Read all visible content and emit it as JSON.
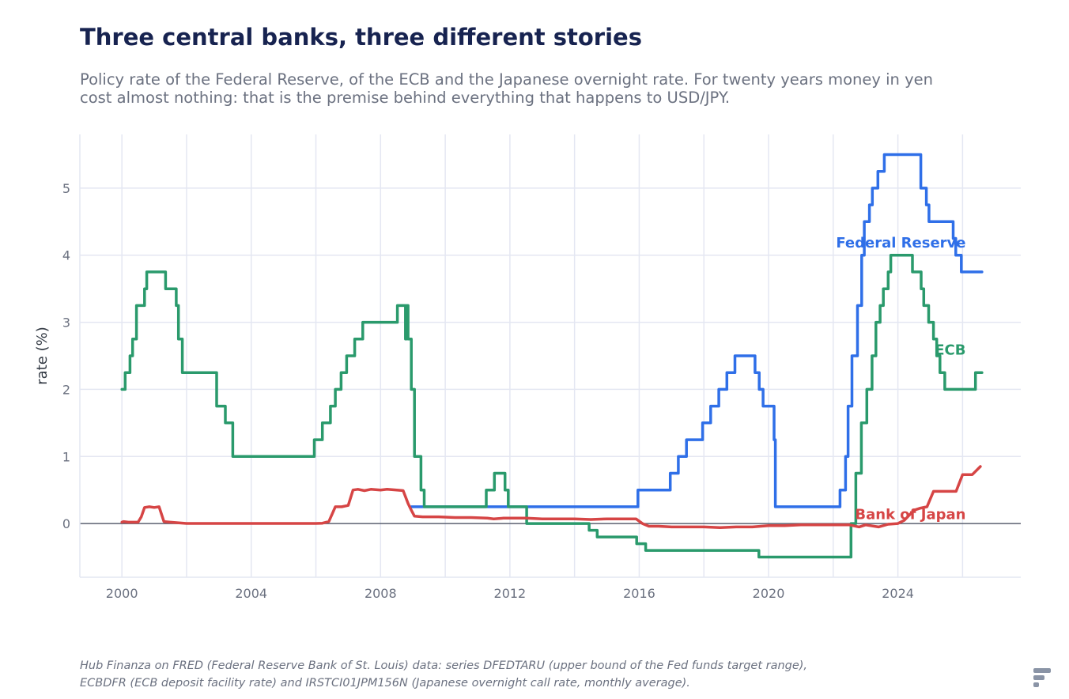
{
  "title": "Three central banks, three different stories",
  "subtitle": "Policy rate of the Federal Reserve, of the ECB and the Japanese overnight rate. For twenty years money in yen cost almost nothing: that is the premise behind everything that happens to USD/JPY.",
  "footnote": "Hub Finanza on FRED (Federal Reserve Bank of St. Louis) data: series DFEDTARU (upper bound of the Fed funds target range), ECBDFR (ECB deposit facility rate) and IRSTCI01JPM156N (Japanese overnight call rate, monthly average).",
  "logo_icon": "brand-logo-icon",
  "chart_data": {
    "type": "line",
    "title": "Three central banks, three different stories",
    "xlabel": "",
    "ylabel": "rate (%)",
    "xlim": [
      1998.7,
      2027.8
    ],
    "ylim": [
      -0.8,
      5.8
    ],
    "x_ticks": [
      2000,
      2004,
      2008,
      2012,
      2016,
      2020,
      2024
    ],
    "x_tick_labels": [
      "2000",
      "2004",
      "2008",
      "2012",
      "2016",
      "2020",
      "2024"
    ],
    "y_ticks": [
      0,
      1,
      2,
      3,
      4,
      5
    ],
    "y_tick_labels": [
      "0",
      "1",
      "2",
      "3",
      "4",
      "5"
    ],
    "grid": true,
    "legend": "direct labels",
    "series": [
      {
        "name": "Federal Reserve",
        "color": "#2f6fe8",
        "step": true,
        "points": [
          [
            2008.95,
            0.25
          ],
          [
            2015.96,
            0.5
          ],
          [
            2016.96,
            0.75
          ],
          [
            2017.21,
            1.0
          ],
          [
            2017.46,
            1.25
          ],
          [
            2017.96,
            1.5
          ],
          [
            2018.21,
            1.75
          ],
          [
            2018.46,
            2.0
          ],
          [
            2018.71,
            2.25
          ],
          [
            2018.96,
            2.5
          ],
          [
            2019.58,
            2.25
          ],
          [
            2019.71,
            2.0
          ],
          [
            2019.83,
            1.75
          ],
          [
            2020.17,
            1.25
          ],
          [
            2020.21,
            0.25
          ],
          [
            2022.21,
            0.5
          ],
          [
            2022.38,
            1.0
          ],
          [
            2022.46,
            1.75
          ],
          [
            2022.58,
            2.5
          ],
          [
            2022.75,
            3.25
          ],
          [
            2022.88,
            4.0
          ],
          [
            2022.96,
            4.5
          ],
          [
            2023.12,
            4.75
          ],
          [
            2023.21,
            5.0
          ],
          [
            2023.38,
            5.25
          ],
          [
            2023.58,
            5.5
          ],
          [
            2024.71,
            5.0
          ],
          [
            2024.88,
            4.75
          ],
          [
            2024.96,
            4.5
          ],
          [
            2025.71,
            4.25
          ],
          [
            2025.79,
            4.0
          ],
          [
            2025.96,
            3.75
          ],
          [
            2026.6,
            3.75
          ]
        ]
      },
      {
        "name": "ECB",
        "color": "#2a9a6c",
        "step": true,
        "points": [
          [
            2000.0,
            2.0
          ],
          [
            2000.1,
            2.25
          ],
          [
            2000.25,
            2.5
          ],
          [
            2000.33,
            2.75
          ],
          [
            2000.45,
            3.25
          ],
          [
            2000.7,
            3.5
          ],
          [
            2000.77,
            3.75
          ],
          [
            2001.35,
            3.5
          ],
          [
            2001.68,
            3.25
          ],
          [
            2001.75,
            2.75
          ],
          [
            2001.87,
            2.25
          ],
          [
            2002.93,
            1.75
          ],
          [
            2003.2,
            1.5
          ],
          [
            2003.43,
            1.0
          ],
          [
            2005.95,
            1.25
          ],
          [
            2006.2,
            1.5
          ],
          [
            2006.45,
            1.75
          ],
          [
            2006.6,
            2.0
          ],
          [
            2006.78,
            2.25
          ],
          [
            2006.95,
            2.5
          ],
          [
            2007.2,
            2.75
          ],
          [
            2007.45,
            3.0
          ],
          [
            2008.52,
            3.25
          ],
          [
            2008.77,
            2.75
          ],
          [
            2008.8,
            3.25
          ],
          [
            2008.85,
            2.75
          ],
          [
            2008.95,
            2.0
          ],
          [
            2009.05,
            1.0
          ],
          [
            2009.25,
            0.5
          ],
          [
            2009.35,
            0.25
          ],
          [
            2011.27,
            0.5
          ],
          [
            2011.52,
            0.75
          ],
          [
            2011.85,
            0.5
          ],
          [
            2011.95,
            0.25
          ],
          [
            2012.52,
            0.0
          ],
          [
            2014.45,
            -0.1
          ],
          [
            2014.7,
            -0.2
          ],
          [
            2015.92,
            -0.3
          ],
          [
            2016.2,
            -0.4
          ],
          [
            2019.7,
            -0.5
          ],
          [
            2022.55,
            0.0
          ],
          [
            2022.7,
            0.75
          ],
          [
            2022.87,
            1.5
          ],
          [
            2023.04,
            2.0
          ],
          [
            2023.2,
            2.5
          ],
          [
            2023.32,
            3.0
          ],
          [
            2023.45,
            3.25
          ],
          [
            2023.55,
            3.5
          ],
          [
            2023.7,
            3.75
          ],
          [
            2023.78,
            4.0
          ],
          [
            2024.45,
            3.75
          ],
          [
            2024.72,
            3.5
          ],
          [
            2024.8,
            3.25
          ],
          [
            2024.95,
            3.0
          ],
          [
            2025.1,
            2.75
          ],
          [
            2025.2,
            2.5
          ],
          [
            2025.3,
            2.25
          ],
          [
            2025.45,
            2.0
          ],
          [
            2026.4,
            2.25
          ],
          [
            2026.6,
            2.25
          ]
        ]
      },
      {
        "name": "Bank of Japan",
        "color": "#d64545",
        "step": false,
        "points": [
          [
            2000.0,
            0.02
          ],
          [
            2000.05,
            0.03
          ],
          [
            2000.2,
            0.02
          ],
          [
            2000.5,
            0.02
          ],
          [
            2000.6,
            0.1
          ],
          [
            2000.7,
            0.24
          ],
          [
            2000.85,
            0.25
          ],
          [
            2001.0,
            0.24
          ],
          [
            2001.15,
            0.25
          ],
          [
            2001.3,
            0.03
          ],
          [
            2001.5,
            0.02
          ],
          [
            2002.0,
            0.002
          ],
          [
            2003.0,
            0.001
          ],
          [
            2004.0,
            0.001
          ],
          [
            2005.0,
            0.001
          ],
          [
            2006.0,
            0.001
          ],
          [
            2006.2,
            0.005
          ],
          [
            2006.4,
            0.03
          ],
          [
            2006.6,
            0.25
          ],
          [
            2006.8,
            0.25
          ],
          [
            2007.0,
            0.27
          ],
          [
            2007.15,
            0.5
          ],
          [
            2007.3,
            0.51
          ],
          [
            2007.5,
            0.49
          ],
          [
            2007.7,
            0.51
          ],
          [
            2008.0,
            0.5
          ],
          [
            2008.2,
            0.51
          ],
          [
            2008.5,
            0.5
          ],
          [
            2008.7,
            0.49
          ],
          [
            2008.85,
            0.3
          ],
          [
            2008.95,
            0.2
          ],
          [
            2009.05,
            0.11
          ],
          [
            2009.3,
            0.1
          ],
          [
            2009.8,
            0.1
          ],
          [
            2010.3,
            0.09
          ],
          [
            2010.8,
            0.09
          ],
          [
            2011.3,
            0.08
          ],
          [
            2011.5,
            0.07
          ],
          [
            2011.8,
            0.08
          ],
          [
            2012.0,
            0.08
          ],
          [
            2012.5,
            0.08
          ],
          [
            2013.0,
            0.07
          ],
          [
            2013.5,
            0.07
          ],
          [
            2014.0,
            0.07
          ],
          [
            2014.5,
            0.06
          ],
          [
            2015.0,
            0.07
          ],
          [
            2015.5,
            0.07
          ],
          [
            2015.9,
            0.07
          ],
          [
            2016.1,
            0.0
          ],
          [
            2016.3,
            -0.04
          ],
          [
            2016.6,
            -0.04
          ],
          [
            2017.0,
            -0.05
          ],
          [
            2017.5,
            -0.05
          ],
          [
            2018.0,
            -0.05
          ],
          [
            2018.5,
            -0.06
          ],
          [
            2019.0,
            -0.05
          ],
          [
            2019.5,
            -0.05
          ],
          [
            2020.0,
            -0.03
          ],
          [
            2020.5,
            -0.03
          ],
          [
            2021.0,
            -0.02
          ],
          [
            2021.5,
            -0.02
          ],
          [
            2022.0,
            -0.02
          ],
          [
            2022.5,
            -0.02
          ],
          [
            2022.8,
            -0.05
          ],
          [
            2023.0,
            -0.02
          ],
          [
            2023.4,
            -0.05
          ],
          [
            2023.7,
            -0.01
          ],
          [
            2024.0,
            0.0
          ],
          [
            2024.2,
            0.05
          ],
          [
            2024.5,
            0.2
          ],
          [
            2024.7,
            0.23
          ],
          [
            2024.9,
            0.25
          ],
          [
            2025.1,
            0.48
          ],
          [
            2025.4,
            0.48
          ],
          [
            2025.8,
            0.48
          ],
          [
            2026.0,
            0.73
          ],
          [
            2026.3,
            0.73
          ],
          [
            2026.55,
            0.85
          ]
        ]
      }
    ],
    "annotations": [
      {
        "text": "Federal Reserve",
        "x": 2026.1,
        "y": 4.2,
        "color": "#2f6fe8"
      },
      {
        "text": "ECB",
        "x": 2026.1,
        "y": 2.6,
        "color": "#2a9a6c"
      },
      {
        "text": "Bank of Japan",
        "x": 2026.1,
        "y": 0.15,
        "color": "#d64545"
      }
    ]
  }
}
